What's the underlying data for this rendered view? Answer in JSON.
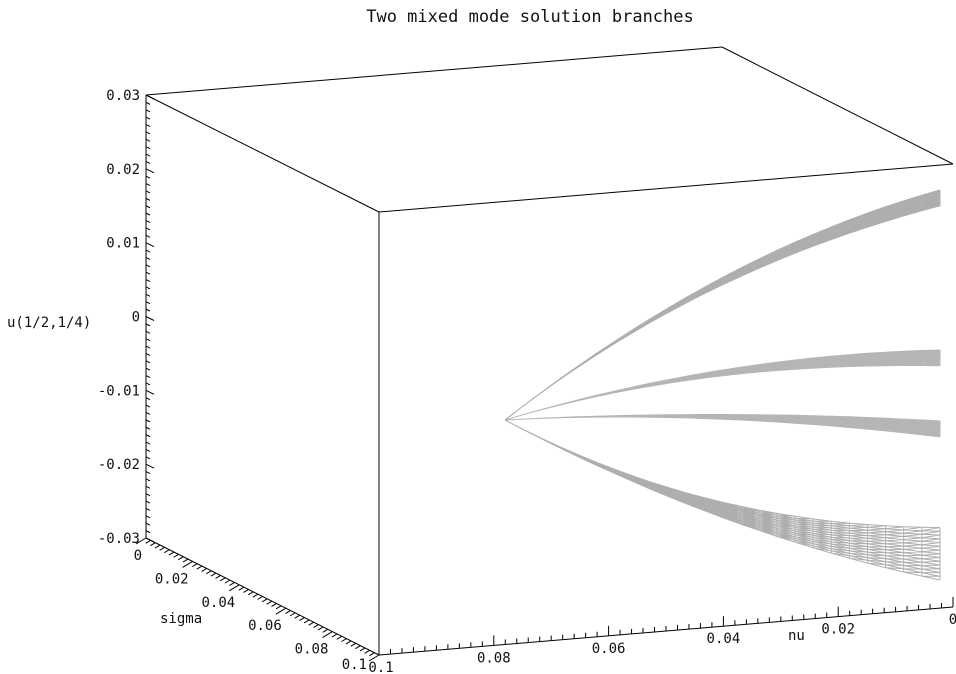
{
  "chart_data": {
    "type": "surface3d",
    "title": "Two mixed mode solution branches",
    "zlabel": "u(1/2,1/4)",
    "xlabel": "sigma",
    "ylabel": "nu",
    "zlim": [
      -0.03,
      0.03
    ],
    "sigma_range": [
      0,
      0.1
    ],
    "nu_range": [
      0,
      0.1
    ],
    "z_ticks": [
      "0.03",
      "0.02",
      "0.01",
      "0",
      "-0.01",
      "-0.02",
      "-0.03"
    ],
    "z_tick_values": [
      0.03,
      0.02,
      0.01,
      0,
      -0.01,
      -0.02,
      -0.03
    ],
    "sigma_ticks": [
      "0",
      "0.02",
      "0.04",
      "0.06",
      "0.08",
      "0.1"
    ],
    "sigma_tick_values": [
      0,
      0.02,
      0.04,
      0.06,
      0.08,
      0.1
    ],
    "nu_ticks": [
      "0.1",
      "0.08",
      "0.06",
      "0.04",
      "0.02",
      "0"
    ],
    "nu_tick_values": [
      0.1,
      0.08,
      0.06,
      0.04,
      0.02,
      0
    ],
    "surface_color": "#9a9a9a",
    "branches": [
      {
        "tip_z": 0.0,
        "outer_z": [
          0.0142,
          -0.0142
        ],
        "inner_z": [
          0.0051,
          -0.0051
        ]
      }
    ]
  }
}
